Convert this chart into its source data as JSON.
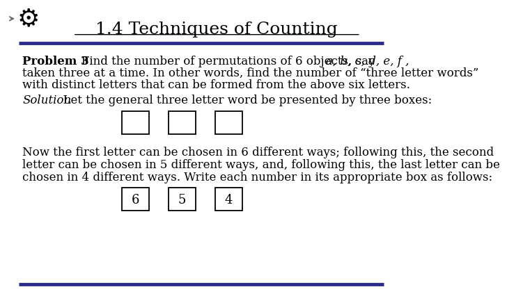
{
  "title": "1.4 Techniques of Counting",
  "background_color": "#ffffff",
  "title_fontsize": 18,
  "header_line_color": "#2b2b8b",
  "problem_bold": "Problem 3",
  "problem_text1": "   Find the number of permutations of 6 objects, say ",
  "problem_italic": "a, b, c, d, e, f ,",
  "problem_line2": "taken three at a time. In other words, find the number of “three letter words”",
  "problem_line3": "with distinct letters that can be formed from the above six letters.",
  "solution_italic": "Solution",
  "solution_text": "  Let the general three letter word be presented by three boxes:",
  "body_line1": "Now the first letter can be chosen in 6 different ways; following this, the second",
  "body_line2": "letter can be chosen in 5 different ways, and, following this, the last letter can be",
  "body_line3": "chosen in 4 different ways. Write each number in its appropriate box as follows:",
  "box_values": [
    "6",
    "5",
    "4"
  ],
  "font_size_body": 12
}
